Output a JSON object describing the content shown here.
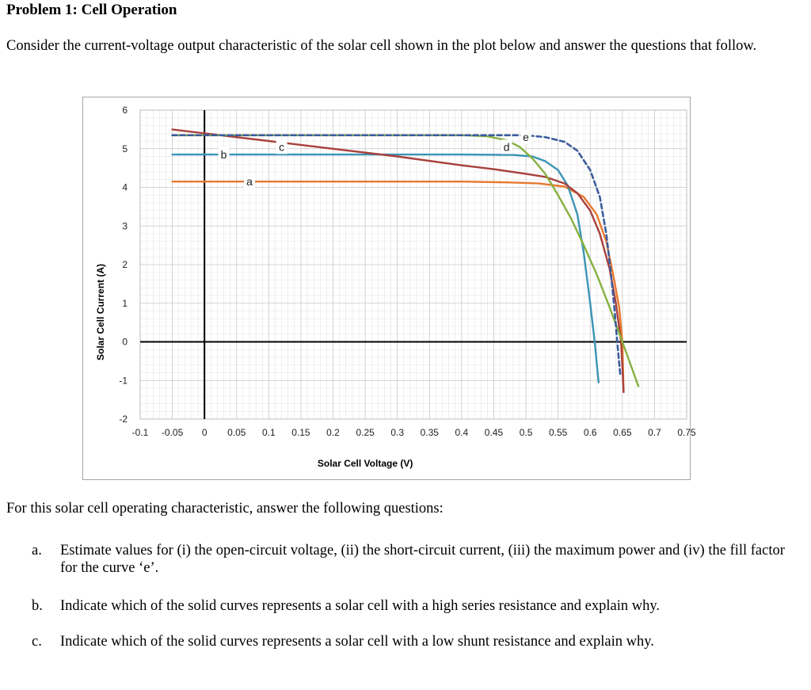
{
  "problem": {
    "title": "Problem 1: Cell Operation",
    "intro": "Consider the current-voltage output characteristic of the solar cell shown in the plot below and answer the questions that follow.",
    "lead": "For this solar cell operating characteristic, answer the following questions:",
    "questions": [
      {
        "label": "a.",
        "text": "Estimate values for (i) the open-circuit voltage, (ii) the short-circuit current, (iii) the maximum power and (iv) the fill factor for the curve ‘e’."
      },
      {
        "label": "b.",
        "text": "Indicate which of the solid curves represents a solar cell with a high series resistance and explain why."
      },
      {
        "label": "c.",
        "text": "Indicate which of the solid curves represents a solar cell with a low shunt resistance and explain why."
      }
    ]
  },
  "chart_data": {
    "type": "line",
    "title": "",
    "xlabel": "Solar Cell Voltage (V)",
    "ylabel": "Solar Cell Current (A)",
    "xlim": [
      -0.1,
      0.75
    ],
    "ylim": [
      -2,
      6
    ],
    "xticks": [
      "-0.1",
      "-0.05",
      "0",
      "0.05",
      "0.1",
      "0.15",
      "0.2",
      "0.25",
      "0.3",
      "0.35",
      "0.4",
      "0.45",
      "0.5",
      "0.55",
      "0.6",
      "0.65",
      "0.7",
      "0.75"
    ],
    "yticks": [
      "-2",
      "-1",
      "0",
      "1",
      "2",
      "3",
      "4",
      "5",
      "6"
    ],
    "grid": true,
    "legend": "none",
    "series": [
      {
        "name": "a",
        "color": "#e8792e",
        "dashed": false,
        "points": [
          [
            -0.05,
            4.15
          ],
          [
            0,
            4.15
          ],
          [
            0.1,
            4.15
          ],
          [
            0.2,
            4.15
          ],
          [
            0.3,
            4.15
          ],
          [
            0.4,
            4.15
          ],
          [
            0.47,
            4.13
          ],
          [
            0.52,
            4.1
          ],
          [
            0.56,
            4.02
          ],
          [
            0.59,
            3.75
          ],
          [
            0.61,
            3.3
          ],
          [
            0.625,
            2.6
          ],
          [
            0.635,
            1.8
          ],
          [
            0.645,
            0.9
          ],
          [
            0.65,
            0
          ],
          [
            0.652,
            -1.3
          ]
        ]
      },
      {
        "name": "b",
        "color": "#3b94b4",
        "dashed": false,
        "points": [
          [
            -0.05,
            4.85
          ],
          [
            0,
            4.85
          ],
          [
            0.1,
            4.85
          ],
          [
            0.2,
            4.85
          ],
          [
            0.3,
            4.85
          ],
          [
            0.4,
            4.85
          ],
          [
            0.48,
            4.84
          ],
          [
            0.51,
            4.8
          ],
          [
            0.53,
            4.68
          ],
          [
            0.55,
            4.45
          ],
          [
            0.565,
            4.05
          ],
          [
            0.58,
            3.3
          ],
          [
            0.59,
            2.3
          ],
          [
            0.6,
            1.0
          ],
          [
            0.607,
            0
          ],
          [
            0.613,
            -1.05
          ]
        ]
      },
      {
        "name": "c",
        "color": "#a8403d",
        "dashed": false,
        "points": [
          [
            -0.05,
            5.5
          ],
          [
            0,
            5.4
          ],
          [
            0.1,
            5.2
          ],
          [
            0.2,
            5.0
          ],
          [
            0.3,
            4.8
          ],
          [
            0.4,
            4.57
          ],
          [
            0.45,
            4.47
          ],
          [
            0.5,
            4.35
          ],
          [
            0.53,
            4.27
          ],
          [
            0.56,
            4.1
          ],
          [
            0.58,
            3.85
          ],
          [
            0.6,
            3.4
          ],
          [
            0.615,
            2.8
          ],
          [
            0.63,
            1.9
          ],
          [
            0.64,
            1.0
          ],
          [
            0.648,
            0
          ],
          [
            0.652,
            -1.3
          ]
        ]
      },
      {
        "name": "d",
        "color": "#86b040",
        "dashed": false,
        "points": [
          [
            -0.05,
            5.35
          ],
          [
            0,
            5.35
          ],
          [
            0.1,
            5.35
          ],
          [
            0.2,
            5.35
          ],
          [
            0.3,
            5.35
          ],
          [
            0.4,
            5.35
          ],
          [
            0.44,
            5.32
          ],
          [
            0.47,
            5.22
          ],
          [
            0.49,
            5.05
          ],
          [
            0.51,
            4.75
          ],
          [
            0.53,
            4.35
          ],
          [
            0.55,
            3.8
          ],
          [
            0.57,
            3.2
          ],
          [
            0.59,
            2.5
          ],
          [
            0.61,
            1.75
          ],
          [
            0.63,
            0.9
          ],
          [
            0.65,
            0
          ],
          [
            0.675,
            -1.15
          ]
        ]
      },
      {
        "name": "e",
        "color": "#3d5d9c",
        "dashed": true,
        "points": [
          [
            -0.05,
            5.35
          ],
          [
            0,
            5.35
          ],
          [
            0.1,
            5.35
          ],
          [
            0.2,
            5.35
          ],
          [
            0.3,
            5.35
          ],
          [
            0.4,
            5.35
          ],
          [
            0.45,
            5.35
          ],
          [
            0.5,
            5.35
          ],
          [
            0.53,
            5.3
          ],
          [
            0.56,
            5.18
          ],
          [
            0.58,
            4.95
          ],
          [
            0.6,
            4.45
          ],
          [
            0.615,
            3.75
          ],
          [
            0.625,
            2.8
          ],
          [
            0.632,
            1.8
          ],
          [
            0.638,
            0.8
          ],
          [
            0.642,
            0
          ],
          [
            0.647,
            -0.9
          ]
        ]
      }
    ],
    "curve_labels": [
      {
        "text": "a",
        "x": 0.07,
        "y": 4.15
      },
      {
        "text": "b",
        "x": 0.03,
        "y": 4.85
      },
      {
        "text": "c",
        "x": 0.12,
        "y": 5.05
      },
      {
        "text": "d",
        "x": 0.47,
        "y": 5.05
      },
      {
        "text": "e",
        "x": 0.5,
        "y": 5.3
      }
    ]
  }
}
